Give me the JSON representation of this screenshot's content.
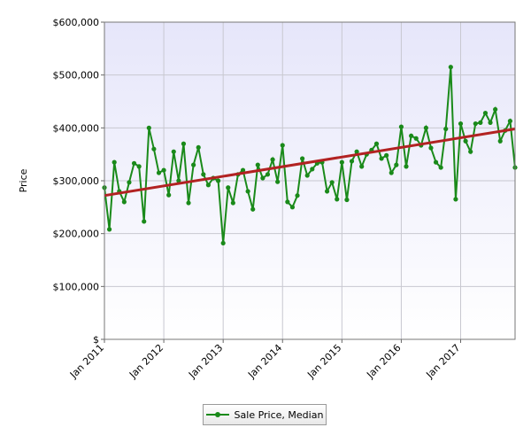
{
  "chart_data": {
    "type": "line",
    "y_label": "Price",
    "categories": [
      "Jan 2011",
      null,
      null,
      null,
      null,
      null,
      null,
      null,
      null,
      null,
      null,
      null,
      "Jan 2012",
      null,
      null,
      null,
      null,
      null,
      null,
      null,
      null,
      null,
      null,
      null,
      "Jan 2013",
      null,
      null,
      null,
      null,
      null,
      null,
      null,
      null,
      null,
      null,
      null,
      "Jan 2014",
      null,
      null,
      null,
      null,
      null,
      null,
      null,
      null,
      null,
      null,
      null,
      "Jan 2015",
      null,
      null,
      null,
      null,
      null,
      null,
      null,
      null,
      null,
      null,
      null,
      "Jan 2016",
      null,
      null,
      null,
      null,
      null,
      null,
      null,
      null,
      null,
      null,
      null,
      "Jan 2017",
      null,
      null,
      null,
      null,
      null,
      null,
      null,
      null,
      null,
      null,
      null
    ],
    "series": [
      {
        "name": "Sale Price, Median",
        "color": "#1a8a1a",
        "values": [
          287000,
          208000,
          335000,
          280000,
          260000,
          297000,
          333000,
          327000,
          223000,
          400000,
          360000,
          315000,
          320000,
          273000,
          355000,
          300000,
          370000,
          258000,
          330000,
          363000,
          312000,
          292000,
          305000,
          300000,
          182000,
          287000,
          258000,
          312000,
          320000,
          280000,
          246000,
          330000,
          305000,
          312000,
          340000,
          298000,
          367000,
          260000,
          250000,
          272000,
          342000,
          310000,
          322000,
          333000,
          335000,
          280000,
          297000,
          265000,
          335000,
          264000,
          337000,
          355000,
          327000,
          350000,
          358000,
          370000,
          342000,
          348000,
          315000,
          330000,
          402000,
          327000,
          385000,
          380000,
          367000,
          400000,
          362000,
          335000,
          325000,
          398000,
          515000,
          265000,
          408000,
          375000,
          355000,
          408000,
          410000,
          428000,
          410000,
          435000,
          375000,
          395000,
          413000,
          325000
        ]
      }
    ],
    "trendline": {
      "color": "#b22222",
      "values": [
        272000,
        398000
      ]
    },
    "ylim": [
      0,
      600000
    ],
    "yticks": [
      {
        "value": 0,
        "label": "$"
      },
      {
        "value": 100000,
        "label": "$100,000"
      },
      {
        "value": 200000,
        "label": "$200,000"
      },
      {
        "value": 300000,
        "label": "$300,000"
      },
      {
        "value": 400000,
        "label": "$400,000"
      },
      {
        "value": 500000,
        "label": "$500,000"
      },
      {
        "value": 600000,
        "label": "$600,000"
      }
    ],
    "grid": true
  }
}
